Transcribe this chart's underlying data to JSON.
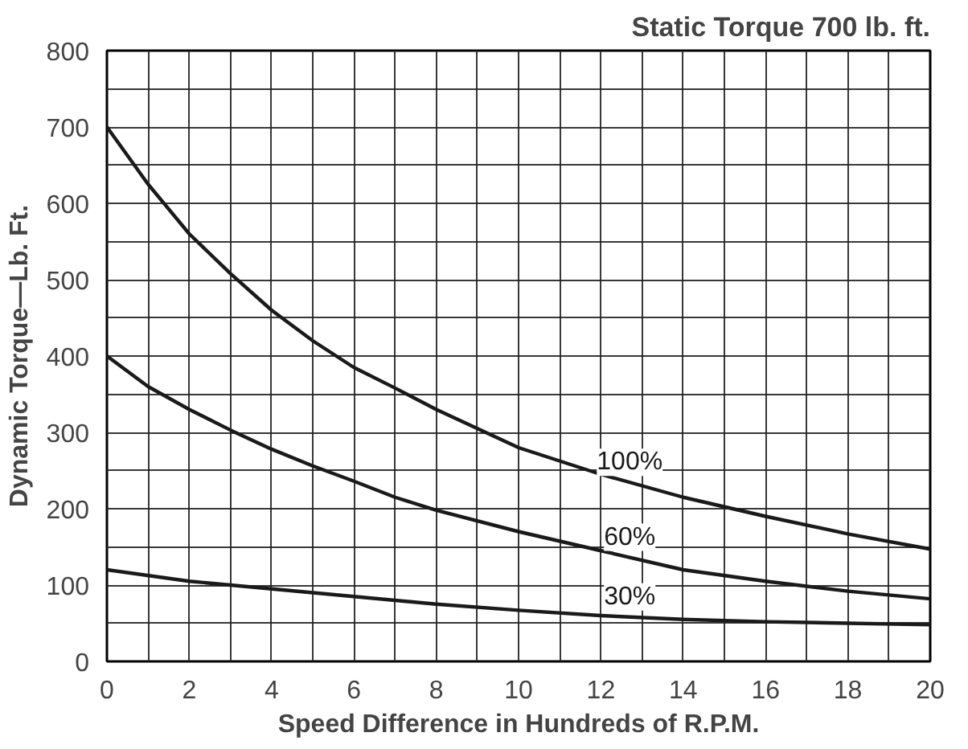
{
  "chart_data": {
    "type": "line",
    "title": "Static Torque 700 lb. ft.",
    "xlabel": "Speed Difference in Hundreds of R.P.M.",
    "ylabel": "Dynamic Torque—Lb. Ft.",
    "x": [
      0,
      1,
      2,
      3,
      4,
      5,
      6,
      7,
      8,
      10,
      12,
      14,
      16,
      18,
      20
    ],
    "series": [
      {
        "name": "100%",
        "color": "#1a1a1a",
        "values": [
          700,
          625,
          560,
          508,
          460,
          420,
          385,
          358,
          330,
          280,
          245,
          215,
          190,
          167,
          147
        ]
      },
      {
        "name": "60%",
        "color": "#1a1a1a",
        "values": [
          400,
          360,
          330,
          303,
          278,
          256,
          236,
          215,
          198,
          170,
          145,
          120,
          105,
          92,
          82
        ]
      },
      {
        "name": "30%",
        "color": "#1a1a1a",
        "x": [
          0,
          2,
          4,
          6,
          8,
          10,
          12,
          14,
          16,
          18,
          20
        ],
        "values": [
          120,
          105,
          95,
          85,
          75,
          67,
          60,
          55,
          52,
          50,
          48
        ]
      }
    ],
    "xlim": [
      0,
      20
    ],
    "ylim": [
      0,
      800
    ],
    "xticks": [
      0,
      2,
      4,
      6,
      8,
      10,
      12,
      14,
      16,
      18,
      20
    ],
    "yticks": [
      0,
      100,
      200,
      300,
      400,
      500,
      600,
      700,
      800
    ],
    "grid": true,
    "marker": "none",
    "line_style": "solid"
  }
}
